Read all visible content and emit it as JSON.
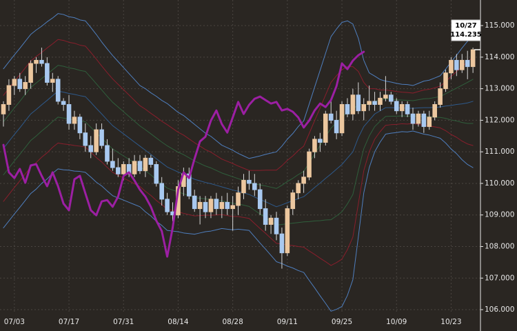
{
  "chart_data": {
    "type": "candlestick",
    "categories": [
      null,
      null,
      "07/03",
      null,
      null,
      null,
      null,
      null,
      null,
      null,
      null,
      null,
      "07/17",
      null,
      null,
      null,
      null,
      null,
      null,
      null,
      null,
      null,
      "07/31",
      null,
      null,
      null,
      null,
      null,
      null,
      null,
      null,
      null,
      "08/14",
      null,
      null,
      null,
      null,
      null,
      null,
      null,
      null,
      null,
      "08/28",
      null,
      null,
      null,
      null,
      null,
      null,
      null,
      null,
      null,
      "09/11",
      null,
      null,
      null,
      null,
      null,
      null,
      null,
      null,
      null,
      "09/25",
      null,
      null,
      null,
      null,
      null,
      null,
      null,
      null,
      null,
      "10/09",
      null,
      null,
      null,
      null,
      null,
      null,
      null,
      null,
      null,
      "10/23",
      null,
      null,
      null,
      null
    ],
    "ylim": [
      105.87,
      115.81
    ],
    "yticks": [
      {
        "value": 106,
        "label": "106.000"
      },
      {
        "value": 107,
        "label": "107.000"
      },
      {
        "value": 108,
        "label": "108.000"
      },
      {
        "value": 109,
        "label": "109.000"
      },
      {
        "value": 110,
        "label": "110.000"
      },
      {
        "value": 111,
        "label": "111.000"
      },
      {
        "value": 112,
        "label": "112.000"
      },
      {
        "value": 113,
        "label": "113.000"
      },
      {
        "value": 114,
        "label": "114.000"
      },
      {
        "value": 115,
        "label": "115.000"
      }
    ],
    "grid": true,
    "up_color": "#ecc79f",
    "down_color": "#a9c9f0",
    "open": [
      112.2,
      112.5,
      113.1,
      113.3,
      113.0,
      113.2,
      113.8,
      113.9,
      113.8,
      113.2,
      113.3,
      112.6,
      112.5,
      111.9,
      112.1,
      111.6,
      111.2,
      111.0,
      111.7,
      111.2,
      110.7,
      110.5,
      110.3,
      110.6,
      110.3,
      110.7,
      110.4,
      110.8,
      110.6,
      110.0,
      109.5,
      109.1,
      109.0,
      109.9,
      110.3,
      109.6,
      109.2,
      109.4,
      109.1,
      109.5,
      109.2,
      109.4,
      109.2,
      109.3,
      109.7,
      110.1,
      110.0,
      109.8,
      109.2,
      108.7,
      108.9,
      108.4,
      107.8,
      109.2,
      109.7,
      110.0,
      110.2,
      111.0,
      111.4,
      111.3,
      112.2,
      112.0,
      111.6,
      112.5,
      112.2,
      112.8,
      112.3,
      112.5,
      112.6,
      112.5,
      112.7,
      112.8,
      112.6,
      112.3,
      112.5,
      112.2,
      111.9,
      112.2,
      111.8,
      112.1,
      112.5,
      113.0,
      113.5,
      113.9,
      113.6,
      113.9,
      113.7
    ],
    "high": [
      112.6,
      113.3,
      113.4,
      113.5,
      113.4,
      113.9,
      114.0,
      114.3,
      114.0,
      113.5,
      113.4,
      112.7,
      112.8,
      112.3,
      112.2,
      111.9,
      111.5,
      111.9,
      111.9,
      111.4,
      111.1,
      110.8,
      110.7,
      110.8,
      110.9,
      110.9,
      110.9,
      110.9,
      110.7,
      110.2,
      109.7,
      109.4,
      110.1,
      110.5,
      110.5,
      109.8,
      109.6,
      109.6,
      109.6,
      109.7,
      109.6,
      109.7,
      109.6,
      109.9,
      110.3,
      110.4,
      110.3,
      110.0,
      109.5,
      109.0,
      109.1,
      108.6,
      109.3,
      109.8,
      110.1,
      110.4,
      111.1,
      111.5,
      111.6,
      112.3,
      112.7,
      112.3,
      112.6,
      112.7,
      113.0,
      113.2,
      112.7,
      113.1,
      112.9,
      112.9,
      113.4,
      112.9,
      112.7,
      112.6,
      112.6,
      112.4,
      112.3,
      112.3,
      112.3,
      112.6,
      113.2,
      113.6,
      114.0,
      114.1,
      114.1,
      114.2,
      114.3
    ],
    "low": [
      111.8,
      112.3,
      112.8,
      112.9,
      112.8,
      113.0,
      113.5,
      113.7,
      113.1,
      112.9,
      112.5,
      112.3,
      111.7,
      111.7,
      111.4,
      111.0,
      110.8,
      110.9,
      111.1,
      110.6,
      110.4,
      110.2,
      110.1,
      110.2,
      110.2,
      110.3,
      110.2,
      110.5,
      109.9,
      109.3,
      109.0,
      108.8,
      108.9,
      109.6,
      109.5,
      109.1,
      108.7,
      108.9,
      108.9,
      109.0,
      108.9,
      109.0,
      108.5,
      109.0,
      109.5,
      109.8,
      109.6,
      109.0,
      108.5,
      108.4,
      108.2,
      107.3,
      107.7,
      109.0,
      109.5,
      109.7,
      110.1,
      110.8,
      111.0,
      111.2,
      111.9,
      111.4,
      111.5,
      112.1,
      112.0,
      112.2,
      112.0,
      112.3,
      112.3,
      112.3,
      112.6,
      112.5,
      112.2,
      112.1,
      112.1,
      111.7,
      111.8,
      111.6,
      111.7,
      112.0,
      112.4,
      112.9,
      113.3,
      113.4,
      113.5,
      113.3,
      113.5
    ],
    "close": [
      112.5,
      113.1,
      113.3,
      113.0,
      113.2,
      113.8,
      113.9,
      113.8,
      113.2,
      113.3,
      112.6,
      112.5,
      111.9,
      112.1,
      111.6,
      111.2,
      111.0,
      111.7,
      111.2,
      110.7,
      110.5,
      110.3,
      110.6,
      110.3,
      110.7,
      110.4,
      110.8,
      110.6,
      110.0,
      109.5,
      109.1,
      109.0,
      109.9,
      110.3,
      109.6,
      109.2,
      109.4,
      109.1,
      109.5,
      109.2,
      109.4,
      109.2,
      109.3,
      109.7,
      110.1,
      110.0,
      109.8,
      109.2,
      108.7,
      108.9,
      108.4,
      107.8,
      109.2,
      109.7,
      110.0,
      110.2,
      111.0,
      111.4,
      111.3,
      112.2,
      112.0,
      111.6,
      112.5,
      112.2,
      112.8,
      112.3,
      112.5,
      112.6,
      112.5,
      112.7,
      112.8,
      112.6,
      112.3,
      112.5,
      112.2,
      111.9,
      112.2,
      111.8,
      112.1,
      112.5,
      113.0,
      113.5,
      113.9,
      113.6,
      113.9,
      113.7,
      114.235
    ],
    "series": [
      {
        "color": "#4f7fbf",
        "width": 1,
        "values": [
          113.63,
          113.85,
          114.07,
          114.28,
          114.5,
          114.72,
          114.86,
          114.98,
          115.12,
          115.24,
          115.38,
          115.35,
          115.28,
          115.25,
          115.18,
          115.15,
          114.94,
          114.72,
          114.48,
          114.26,
          114.05,
          113.86,
          113.67,
          113.48,
          113.29,
          113.1,
          113.0,
          112.87,
          112.76,
          112.63,
          112.53,
          112.39,
          112.25,
          112.15,
          112.01,
          111.87,
          111.73,
          111.59,
          111.49,
          111.35,
          111.21,
          111.13,
          111.05,
          110.95,
          110.87,
          110.79,
          110.83,
          110.87,
          110.92,
          110.96,
          111.0,
          111.18,
          111.4,
          111.58,
          111.8,
          111.98,
          112.51,
          113.05,
          113.58,
          114.12,
          114.65,
          114.89,
          115.1,
          115.15,
          115.05,
          114.6,
          113.9,
          113.5,
          113.4,
          113.29,
          113.24,
          113.21,
          113.17,
          113.14,
          113.13,
          113.1,
          113.17,
          113.24,
          113.27,
          113.34,
          113.41,
          113.62,
          113.85,
          114.06,
          114.29,
          114.5,
          114.7
        ]
      },
      {
        "color": "#8a1e2c",
        "width": 1,
        "values": [
          112.79,
          113.01,
          113.23,
          113.44,
          113.66,
          113.88,
          114.02,
          114.15,
          114.29,
          114.42,
          114.56,
          114.53,
          114.47,
          114.44,
          114.38,
          114.35,
          114.15,
          113.94,
          113.72,
          113.51,
          113.31,
          113.14,
          112.97,
          112.8,
          112.63,
          112.46,
          112.35,
          112.22,
          112.1,
          111.97,
          111.86,
          111.74,
          111.62,
          111.53,
          111.41,
          111.29,
          111.18,
          111.07,
          110.99,
          110.88,
          110.77,
          110.7,
          110.63,
          110.55,
          110.48,
          110.41,
          110.41,
          110.41,
          110.42,
          110.42,
          110.42,
          110.56,
          110.73,
          110.87,
          111.04,
          111.18,
          111.58,
          111.99,
          112.39,
          112.8,
          113.2,
          113.41,
          113.6,
          113.7,
          113.7,
          113.55,
          113.2,
          113.0,
          113.0,
          112.96,
          112.96,
          112.94,
          112.91,
          112.89,
          112.88,
          112.86,
          112.91,
          112.96,
          112.98,
          113.03,
          113.08,
          113.23,
          113.39,
          113.54,
          113.7,
          113.85,
          114.0
        ]
      },
      {
        "color": "#2f5f3c",
        "width": 1,
        "values": [
          111.95,
          112.17,
          112.39,
          112.6,
          112.82,
          113.04,
          113.18,
          113.32,
          113.46,
          113.6,
          113.74,
          113.71,
          113.66,
          113.63,
          113.58,
          113.55,
          113.36,
          113.16,
          112.96,
          112.76,
          112.57,
          112.42,
          112.27,
          112.12,
          111.97,
          111.82,
          111.7,
          111.57,
          111.44,
          111.31,
          111.19,
          111.09,
          110.99,
          110.91,
          110.81,
          110.71,
          110.63,
          110.55,
          110.49,
          110.41,
          110.33,
          110.27,
          110.21,
          110.15,
          110.09,
          110.03,
          109.99,
          109.95,
          109.92,
          109.88,
          109.84,
          109.94,
          110.06,
          110.16,
          110.28,
          110.38,
          110.65,
          110.93,
          111.2,
          111.48,
          111.75,
          111.93,
          112.1,
          112.25,
          112.35,
          112.5,
          112.5,
          112.5,
          112.6,
          112.63,
          112.68,
          112.67,
          112.65,
          112.64,
          112.63,
          112.62,
          112.65,
          112.68,
          112.69,
          112.72,
          112.75,
          112.84,
          112.93,
          113.02,
          113.11,
          113.2,
          113.3
        ]
      },
      {
        "color": "#2e5a8c",
        "width": 1,
        "values": [
          111.11,
          111.33,
          111.55,
          111.76,
          111.98,
          112.2,
          112.34,
          112.49,
          112.63,
          112.78,
          112.92,
          112.89,
          112.85,
          112.82,
          112.78,
          112.75,
          112.57,
          112.38,
          112.2,
          112.01,
          111.83,
          111.7,
          111.57,
          111.44,
          111.31,
          111.18,
          111.05,
          110.92,
          110.78,
          110.65,
          110.52,
          110.44,
          110.36,
          110.29,
          110.21,
          110.13,
          110.08,
          110.03,
          109.99,
          109.94,
          109.89,
          109.84,
          109.79,
          109.75,
          109.7,
          109.65,
          109.57,
          109.49,
          109.42,
          109.34,
          109.26,
          109.32,
          109.39,
          109.45,
          109.52,
          109.58,
          109.72,
          109.87,
          110.01,
          110.16,
          110.3,
          110.45,
          110.6,
          110.8,
          111.0,
          111.45,
          111.8,
          112.0,
          112.2,
          112.3,
          112.4,
          112.4,
          112.39,
          112.39,
          112.38,
          112.38,
          112.39,
          112.4,
          112.4,
          112.41,
          112.42,
          112.45,
          112.47,
          112.5,
          112.52,
          112.55,
          112.6
        ]
      },
      {
        "color": "#2f5f3c",
        "width": 1,
        "values": [
          110.27,
          110.49,
          110.71,
          110.92,
          111.14,
          111.36,
          111.5,
          111.66,
          111.8,
          111.96,
          112.1,
          112.07,
          112.04,
          112.01,
          111.98,
          111.95,
          111.78,
          111.6,
          111.44,
          111.26,
          111.09,
          110.98,
          110.87,
          110.76,
          110.65,
          110.54,
          110.4,
          110.27,
          110.12,
          109.99,
          109.85,
          109.79,
          109.73,
          109.67,
          109.61,
          109.55,
          109.53,
          109.51,
          109.49,
          109.47,
          109.45,
          109.41,
          109.37,
          109.35,
          109.31,
          109.27,
          109.15,
          109.03,
          108.92,
          108.8,
          108.68,
          108.7,
          108.72,
          108.74,
          108.76,
          108.78,
          108.79,
          108.81,
          108.82,
          108.84,
          108.85,
          108.97,
          109.1,
          109.35,
          109.65,
          110.4,
          111.1,
          111.5,
          111.8,
          111.97,
          112.12,
          112.13,
          112.13,
          112.14,
          112.13,
          112.14,
          112.13,
          112.12,
          112.11,
          112.1,
          112.09,
          112.06,
          112.01,
          111.98,
          111.93,
          111.9,
          111.9
        ]
      },
      {
        "color": "#8a1e2c",
        "width": 1,
        "values": [
          109.43,
          109.65,
          109.87,
          110.08,
          110.3,
          110.52,
          110.66,
          110.83,
          110.97,
          111.14,
          111.28,
          111.25,
          111.23,
          111.2,
          111.18,
          111.15,
          110.99,
          110.82,
          110.68,
          110.51,
          110.35,
          110.26,
          110.17,
          110.08,
          109.99,
          109.9,
          109.75,
          109.62,
          109.46,
          109.33,
          109.18,
          109.14,
          109.1,
          109.05,
          109.01,
          108.97,
          108.98,
          108.99,
          108.99,
          109.0,
          109.01,
          108.98,
          108.95,
          108.95,
          108.92,
          108.89,
          108.73,
          108.57,
          108.42,
          108.26,
          108.1,
          108.08,
          108.05,
          108.03,
          108.0,
          107.98,
          107.86,
          107.75,
          107.63,
          107.52,
          107.4,
          107.49,
          107.6,
          107.9,
          108.3,
          109.35,
          110.4,
          111.0,
          111.4,
          111.64,
          111.84,
          111.86,
          111.87,
          111.89,
          111.88,
          111.9,
          111.87,
          111.84,
          111.82,
          111.79,
          111.76,
          111.67,
          111.55,
          111.46,
          111.34,
          111.25,
          111.2
        ]
      },
      {
        "color": "#4f7fbf",
        "width": 1,
        "values": [
          108.59,
          108.81,
          109.03,
          109.24,
          109.46,
          109.68,
          109.82,
          110.0,
          110.14,
          110.32,
          110.46,
          110.43,
          110.42,
          110.39,
          110.38,
          110.35,
          110.2,
          110.04,
          109.92,
          109.76,
          109.61,
          109.54,
          109.47,
          109.4,
          109.33,
          109.26,
          109.1,
          108.97,
          108.8,
          108.67,
          108.51,
          108.49,
          108.47,
          108.43,
          108.41,
          108.39,
          108.43,
          108.47,
          108.49,
          108.53,
          108.57,
          108.55,
          108.53,
          108.55,
          108.53,
          108.51,
          108.31,
          108.11,
          107.92,
          107.72,
          107.52,
          107.46,
          107.38,
          107.32,
          107.24,
          107.18,
          106.93,
          106.69,
          106.44,
          106.2,
          105.95,
          106.01,
          106.1,
          106.45,
          106.95,
          108.3,
          109.7,
          110.5,
          111.0,
          111.31,
          111.56,
          111.59,
          111.61,
          111.64,
          111.63,
          111.66,
          111.61,
          111.56,
          111.53,
          111.48,
          111.43,
          111.28,
          111.09,
          110.94,
          110.75,
          110.6,
          110.5
        ]
      },
      {
        "color": "#9c1fa3",
        "width": 3,
        "values": [
          111.22,
          110.35,
          110.17,
          110.46,
          110.02,
          110.57,
          110.61,
          110.24,
          109.91,
          110.35,
          109.91,
          109.36,
          109.15,
          110.13,
          110.24,
          109.69,
          109.15,
          108.99,
          109.43,
          109.47,
          109.26,
          109.58,
          110.24,
          110.35,
          110.09,
          109.8,
          109.58,
          109.26,
          108.82,
          108.49,
          107.68,
          108.6,
          109.8,
          110.35,
          110.17,
          110.78,
          111.33,
          111.48,
          111.99,
          112.31,
          111.88,
          111.61,
          112.09,
          112.58,
          112.2,
          112.49,
          112.68,
          112.75,
          112.64,
          112.53,
          112.58,
          112.31,
          112.36,
          112.27,
          112.09,
          111.77,
          111.99,
          112.31,
          112.53,
          112.42,
          112.64,
          113.08,
          113.8,
          113.62,
          113.89,
          114.06,
          114.17,
          null,
          null,
          null,
          null,
          null,
          null,
          null,
          null,
          null,
          null,
          null,
          null,
          null,
          null,
          null,
          null,
          null,
          null,
          null,
          null
        ]
      }
    ],
    "annotation": {
      "text": "10/27"
    }
  }
}
